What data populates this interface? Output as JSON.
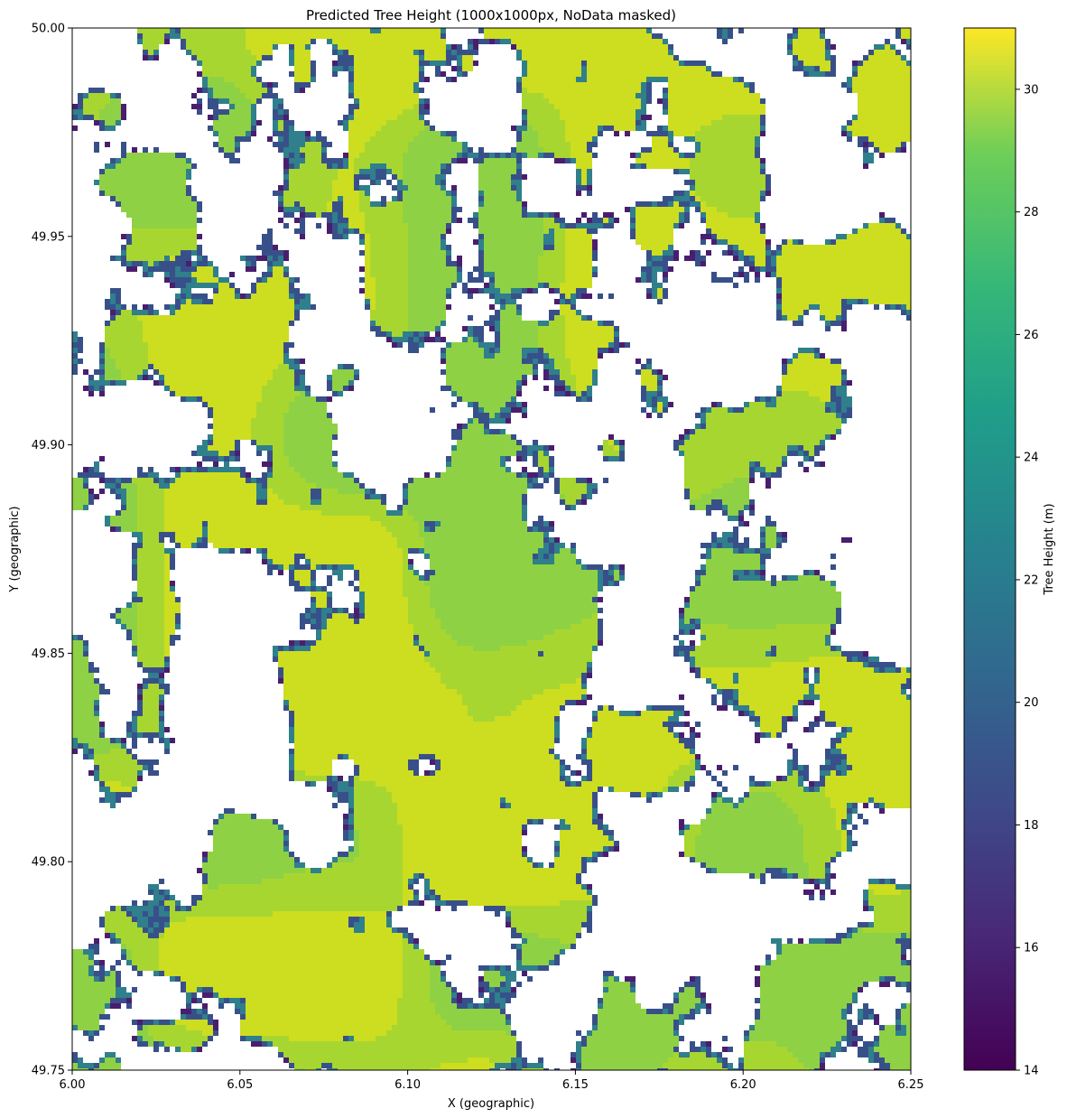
{
  "chart_data": {
    "type": "heatmap",
    "title": "Predicted Tree Height (1000x1000px, NoData masked)",
    "xlabel": "X (geographic)",
    "ylabel": "Y (geographic)",
    "xlim": [
      6.0,
      6.25
    ],
    "ylim": [
      49.75,
      50.0
    ],
    "x_ticks": [
      "6.00",
      "6.05",
      "6.10",
      "6.15",
      "6.20",
      "6.25"
    ],
    "y_ticks": [
      "49.75",
      "49.80",
      "49.85",
      "49.90",
      "49.95",
      "50.00"
    ],
    "colorbar": {
      "label": "Tree Height (m)",
      "range": [
        14,
        31
      ],
      "ticks": [
        "14",
        "16",
        "18",
        "20",
        "22",
        "24",
        "26",
        "28",
        "30"
      ],
      "colormap": "viridis"
    },
    "masked_value_color": "#ffffff",
    "raster_resolution": "1000x1000"
  }
}
